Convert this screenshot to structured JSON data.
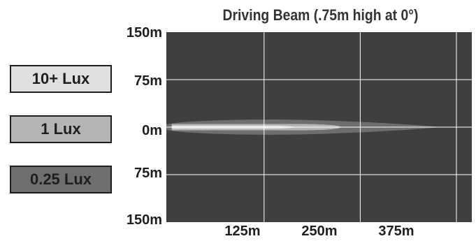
{
  "chart_data": {
    "type": "heatmap",
    "title": "Driving Beam (.75m high at 0°)",
    "xlabel": "",
    "ylabel": "",
    "xlim": [
      0,
      450
    ],
    "ylim": [
      -150,
      150
    ],
    "x_ticks": [
      "125m",
      "250m",
      "375m"
    ],
    "x_tick_values": [
      125,
      250,
      375
    ],
    "y_ticks": [
      "150m",
      "75m",
      "0m",
      "75m",
      "150m"
    ],
    "y_tick_values": [
      150,
      75,
      0,
      -75,
      -150
    ],
    "grid": true,
    "legend": [
      {
        "label": "10+ Lux",
        "color": "#e0e0e0"
      },
      {
        "label": "1 Lux",
        "color": "#b5b5b5"
      },
      {
        "label": "0.25 Lux",
        "color": "#6e6e6e"
      }
    ],
    "plot_background": "#3f3f3f",
    "grid_color": "#ffffff",
    "beam_zones": [
      {
        "level": "0.25 Lux",
        "x_start": -2,
        "x_end": 355,
        "max_half_width_m": 12
      },
      {
        "level": "1 Lux",
        "x_start": 5,
        "x_end": 225,
        "max_half_width_m": 5
      },
      {
        "level": "10+ Lux",
        "x_start": 5,
        "x_end": 165,
        "max_half_width_m": 2.5
      }
    ]
  }
}
